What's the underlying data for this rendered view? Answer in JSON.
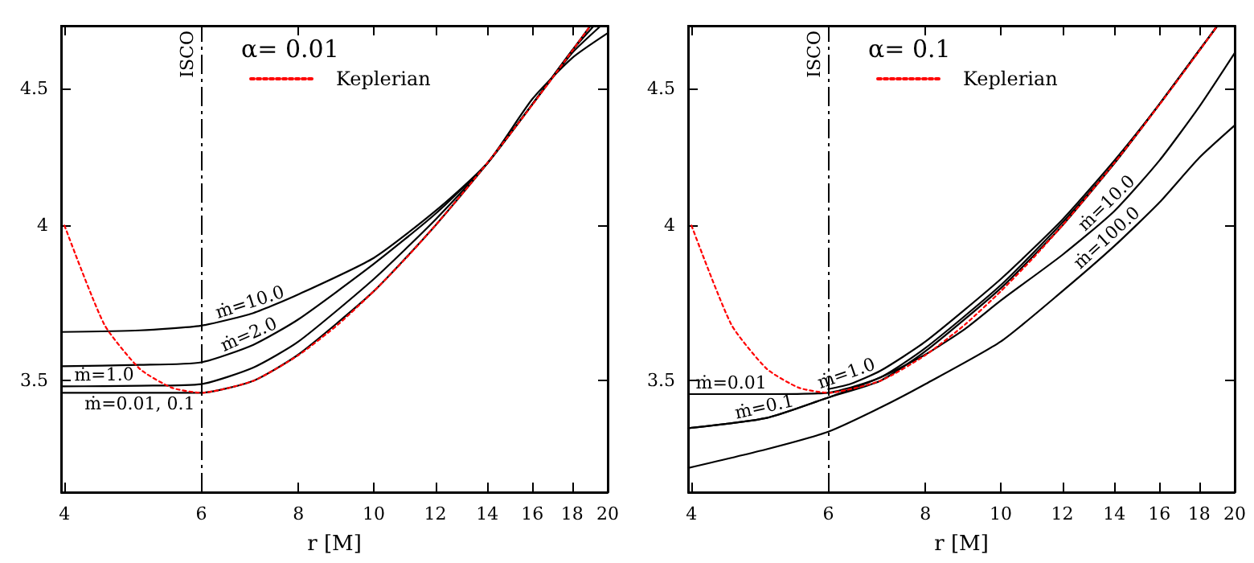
{
  "chart_data": [
    {
      "type": "line",
      "title": "α= 0.01",
      "xlabel": "r [M]",
      "log": "xy",
      "xlim": [
        3.96,
        20
      ],
      "xticks": [
        4,
        6,
        8,
        10,
        12,
        14,
        16,
        18,
        20
      ],
      "ylim": [
        3.18,
        4.75
      ],
      "yticks": [
        3.5,
        4,
        4.5
      ],
      "grid": false,
      "legend": "top",
      "marker": "none",
      "series": [
        {
          "color": "#000000",
          "line_style": "solid",
          "x": [
            3.96,
            5,
            6,
            7,
            8,
            10,
            12,
            14,
            16,
            18,
            20
          ],
          "values": [
            3.65,
            3.655,
            3.67,
            3.71,
            3.77,
            3.89,
            4.05,
            4.22,
            4.46,
            4.62,
            4.72
          ]
        },
        {
          "color": "#000000",
          "line_style": "solid",
          "x": [
            3.96,
            5,
            6,
            7,
            8,
            10,
            12,
            14,
            16,
            18,
            19.6
          ],
          "values": [
            3.544,
            3.548,
            3.556,
            3.61,
            3.69,
            3.87,
            4.04,
            4.22,
            4.44,
            4.64,
            4.75
          ]
        },
        {
          "color": "#000000",
          "line_style": "solid",
          "x": [
            3.96,
            4.5,
            5,
            6,
            7,
            8,
            10,
            12,
            14,
            16,
            18,
            19.2
          ],
          "values": [
            3.483,
            3.484,
            3.485,
            3.49,
            3.54,
            3.62,
            3.82,
            4.02,
            4.22,
            4.44,
            4.65,
            4.75
          ]
        },
        {
          "color": "#000000",
          "line_style": "solid",
          "x": [
            3.96,
            5,
            6,
            7,
            8,
            10,
            12,
            14,
            16,
            18,
            19
          ],
          "values": [
            3.464,
            3.464,
            3.464,
            3.5,
            3.58,
            3.78,
            4.0,
            4.22,
            4.44,
            4.65,
            4.75
          ]
        },
        {
          "name": "Keplerian",
          "color": "#ff0000",
          "line_style": "dotted",
          "x": [
            4,
            4.5,
            5,
            5.5,
            6,
            7,
            8,
            9,
            10,
            11,
            12,
            13,
            14,
            15,
            16,
            17,
            18,
            19
          ],
          "values": [
            4.0,
            3.674,
            3.536,
            3.479,
            3.464,
            3.5,
            3.578,
            3.674,
            3.78,
            3.889,
            4.0,
            4.111,
            4.221,
            4.33,
            4.438,
            4.544,
            4.648,
            4.75
          ]
        }
      ],
      "ref_lines": [
        {
          "axis": "x",
          "value": 6,
          "label": "ISCO",
          "color": "#000000",
          "line_style": "dashed"
        }
      ],
      "annotations": [
        {
          "text": "ṁ=10.0",
          "x": 7,
          "y": 3.71
        },
        {
          "text": "ṁ=2.0",
          "x": 7,
          "y": 3.61
        },
        {
          "text": "ṁ=1.0",
          "x": 4.5,
          "y": 3.484
        },
        {
          "text": "ṁ=0.01, 0.1",
          "x": 5,
          "y": 3.464
        }
      ]
    },
    {
      "type": "line",
      "title": "α= 0.1",
      "xlabel": "r [M]",
      "log": "xy",
      "xlim": [
        3.96,
        20
      ],
      "xticks": [
        4,
        6,
        8,
        10,
        12,
        14,
        16,
        18,
        20
      ],
      "ylim": [
        3.18,
        4.75
      ],
      "yticks": [
        3.5,
        4,
        4.5
      ],
      "grid": false,
      "legend": "top",
      "marker": "none",
      "series": [
        {
          "color": "#000000",
          "line_style": "solid",
          "x": [
            3.96,
            4.5,
            5,
            6,
            7,
            8,
            10,
            12,
            14,
            16,
            18,
            19
          ],
          "values": [
            3.46,
            3.46,
            3.46,
            3.464,
            3.51,
            3.6,
            3.8,
            4.01,
            4.22,
            4.44,
            4.65,
            4.75
          ]
        },
        {
          "color": "#000000",
          "line_style": "solid",
          "x": [
            3.96,
            5,
            6,
            7,
            8,
            10,
            12,
            14,
            16,
            18,
            19
          ],
          "values": [
            3.36,
            3.39,
            3.45,
            3.5,
            3.59,
            3.79,
            4.0,
            4.22,
            4.44,
            4.65,
            4.75
          ]
        },
        {
          "color": "#000000",
          "line_style": "solid",
          "x": [
            6,
            6.4,
            7,
            8,
            10,
            12,
            14,
            16,
            18,
            19
          ],
          "values": [
            3.475,
            3.49,
            3.53,
            3.62,
            3.82,
            4.02,
            4.23,
            4.44,
            4.65,
            4.75
          ]
        },
        {
          "color": "#000000",
          "line_style": "solid",
          "x": [
            3.96,
            5,
            6,
            7,
            8,
            9,
            10,
            12,
            14,
            16,
            18,
            20
          ],
          "values": [
            3.36,
            3.39,
            3.45,
            3.51,
            3.58,
            3.66,
            3.75,
            3.9,
            4.05,
            4.23,
            4.43,
            4.64
          ]
        },
        {
          "color": "#000000",
          "line_style": "solid",
          "x": [
            3.96,
            5,
            6,
            7,
            8,
            10,
            12,
            14,
            16,
            18,
            20
          ],
          "values": [
            3.247,
            3.3,
            3.35,
            3.42,
            3.49,
            3.62,
            3.78,
            3.93,
            4.08,
            4.24,
            4.36
          ]
        },
        {
          "name": "Keplerian",
          "color": "#ff0000",
          "line_style": "dotted",
          "x": [
            4,
            4.5,
            5,
            5.5,
            6,
            7,
            8,
            9,
            10,
            11,
            12,
            13,
            14,
            15,
            16,
            17,
            18,
            19
          ],
          "values": [
            4.0,
            3.674,
            3.536,
            3.479,
            3.464,
            3.5,
            3.578,
            3.674,
            3.78,
            3.889,
            4.0,
            4.111,
            4.221,
            4.33,
            4.438,
            4.544,
            4.648,
            4.75
          ]
        }
      ],
      "ref_lines": [
        {
          "axis": "x",
          "value": 6,
          "label": "ISCO",
          "color": "#000000",
          "line_style": "dashed"
        }
      ],
      "annotations": [
        {
          "text": "ṁ=0.01",
          "x": 4.5,
          "y": 3.46
        },
        {
          "text": "ṁ=0.1",
          "x": 5,
          "y": 3.39
        },
        {
          "text": "ṁ=1.0",
          "x": 6.4,
          "y": 3.49
        },
        {
          "text": "ṁ=10.0",
          "x": 14,
          "y": 4.05
        },
        {
          "text": "ṁ=100.0",
          "x": 14,
          "y": 3.93
        }
      ]
    }
  ]
}
